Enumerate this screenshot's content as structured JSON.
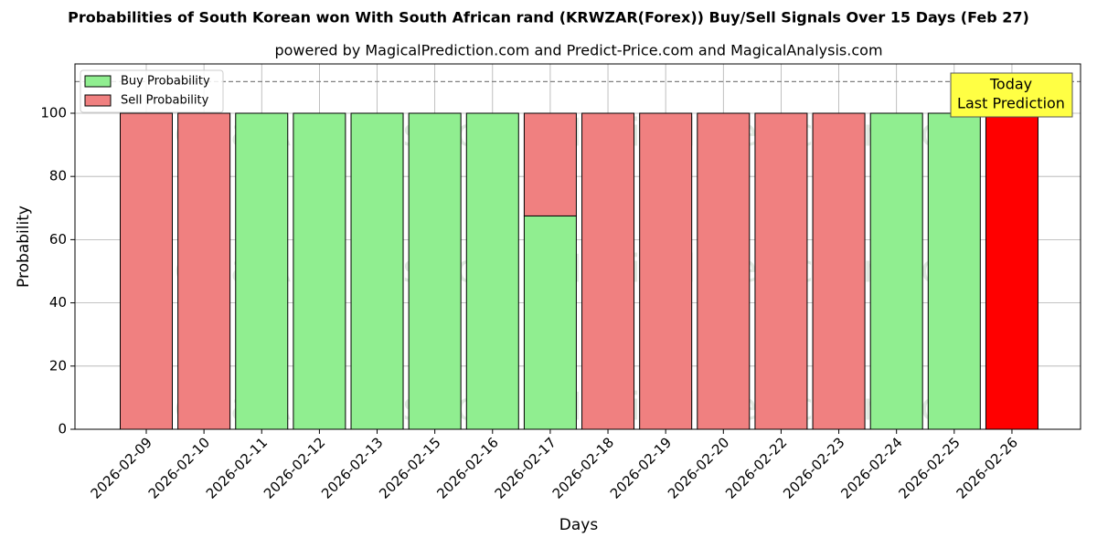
{
  "chart_data": {
    "type": "stacked_bar",
    "title": "Probabilities of South Korean won With South African rand (KRWZAR(Forex)) Buy/Sell Signals Over 15 Days (Feb 27)",
    "subtitle": "powered by MagicalPrediction.com and Predict-Price.com and MagicalAnalysis.com",
    "xlabel": "Days",
    "ylabel": "Probability",
    "categories": [
      "2026-02-09",
      "2026-02-10",
      "2026-02-11",
      "2026-02-12",
      "2026-02-13",
      "2026-02-15",
      "2026-02-16",
      "2026-02-17",
      "2026-02-18",
      "2026-02-19",
      "2026-02-20",
      "2026-02-22",
      "2026-02-23",
      "2026-02-24",
      "2026-02-25",
      "2026-02-26"
    ],
    "series": [
      {
        "name": "Buy Probability",
        "color": "#90ee90",
        "values": [
          0,
          0,
          100,
          100,
          100,
          100,
          100,
          67.5,
          0,
          0,
          0,
          0,
          0,
          100,
          100,
          0
        ]
      },
      {
        "name": "Sell Probability",
        "color": "#f08080",
        "values": [
          100,
          100,
          0,
          0,
          0,
          0,
          0,
          32.5,
          100,
          100,
          100,
          100,
          100,
          0,
          0,
          100
        ]
      }
    ],
    "highlight_color": "#ff0000",
    "ylim": [
      0,
      115.6
    ],
    "yticks": [
      0,
      20,
      40,
      60,
      80,
      100
    ],
    "reference_line": 110,
    "annotation": [
      "Today",
      "Last Prediction"
    ],
    "watermarks": [
      "MagicalAnalysis.com",
      "MagicalPrediction.com"
    ],
    "grid": true,
    "legend": "upper left"
  }
}
